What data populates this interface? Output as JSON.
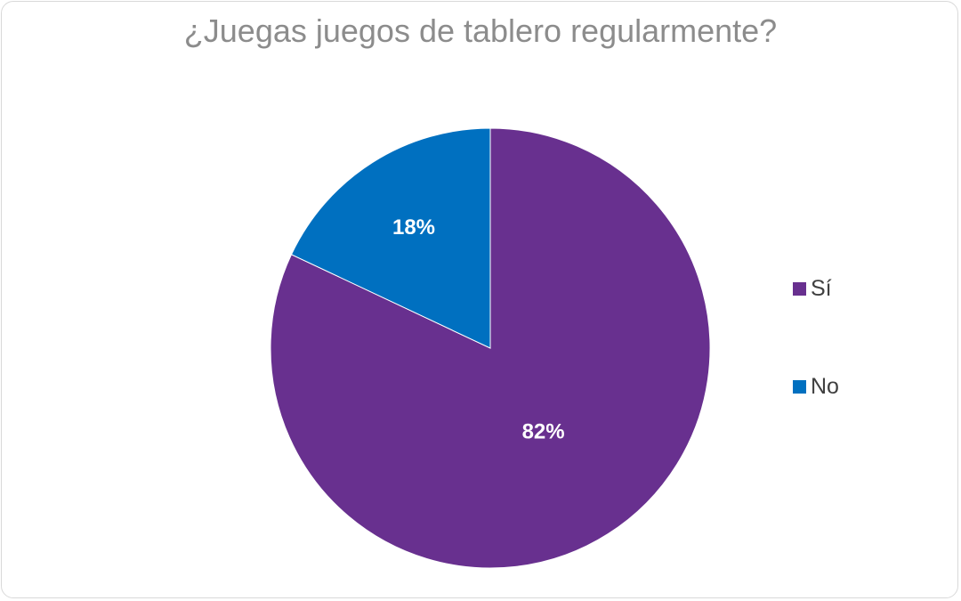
{
  "chart_data": {
    "type": "pie",
    "title": "¿Juegas juegos de tablero regularmente?",
    "categories": [
      "Sí",
      "No"
    ],
    "values": [
      82,
      18
    ],
    "data_labels": [
      "82%",
      "18%"
    ],
    "colors": [
      "#68308f",
      "#0070c0"
    ],
    "legend_position": "right"
  }
}
